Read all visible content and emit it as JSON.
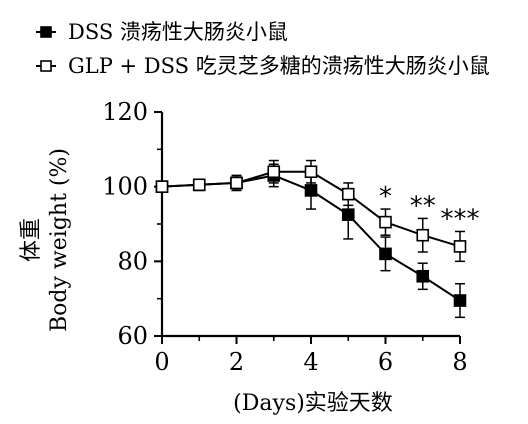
{
  "chart_data": {
    "type": "line",
    "xlabel": "(Days)实验天数",
    "ylabel_cn": "体重",
    "ylabel_en": "Body weight (%)",
    "xlim": [
      0,
      8
    ],
    "ylim": [
      60,
      120
    ],
    "x_ticks": [
      "0",
      "2",
      "4",
      "6",
      "8"
    ],
    "y_ticks": [
      "60",
      "80",
      "100",
      "120"
    ],
    "x": [
      0,
      1,
      2,
      3,
      4,
      5,
      6,
      7,
      8
    ],
    "series": [
      {
        "name": "DSS 溃疡性大肠炎小鼠",
        "marker": "filled-square",
        "color": "#000000",
        "values": [
          100,
          100.5,
          101,
          103,
          99,
          92.5,
          82,
          76,
          69.5
        ],
        "error": [
          0.5,
          1.5,
          2,
          3,
          5,
          6.5,
          4.5,
          3.5,
          4.5
        ]
      },
      {
        "name": "GLP + DSS 吃灵芝多糖的溃疡性大肠炎小鼠",
        "marker": "open-square",
        "color": "#000000",
        "values": [
          100,
          100.5,
          101,
          104,
          104,
          98,
          90.5,
          87,
          84
        ],
        "error": [
          0.5,
          1,
          2,
          3,
          3,
          3,
          3.5,
          4.5,
          4
        ]
      }
    ],
    "annotations": [
      {
        "x": 6,
        "text": "*"
      },
      {
        "x": 7,
        "text": "**"
      },
      {
        "x": 8,
        "text": "***"
      }
    ],
    "legend_position": "top-left",
    "grid": false
  }
}
